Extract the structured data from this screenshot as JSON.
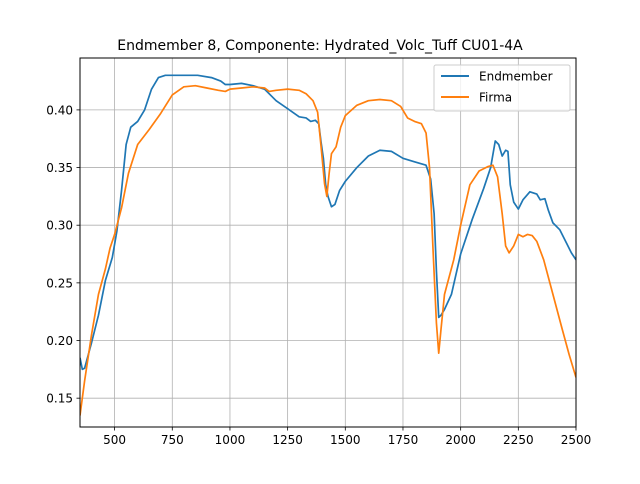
{
  "chart_data": {
    "type": "line",
    "title": "Endmember 8, Componente: Hydrated_Volc_Tuff CU01-4A",
    "xlabel": "",
    "ylabel": "",
    "xlim": [
      350,
      2500
    ],
    "ylim": [
      0.125,
      0.445
    ],
    "xticks": [
      500,
      750,
      1000,
      1250,
      1500,
      1750,
      2000,
      2250,
      2500
    ],
    "yticks": [
      0.15,
      0.2,
      0.25,
      0.3,
      0.35,
      0.4
    ],
    "ytick_labels": [
      "0.15",
      "0.20",
      "0.25",
      "0.30",
      "0.35",
      "0.40"
    ],
    "grid": true,
    "legend_position": "top-right",
    "series": [
      {
        "name": "Endmember",
        "color": "#1f77b4",
        "points": [
          [
            350,
            0.185
          ],
          [
            360,
            0.175
          ],
          [
            370,
            0.176
          ],
          [
            400,
            0.198
          ],
          [
            430,
            0.222
          ],
          [
            460,
            0.252
          ],
          [
            490,
            0.272
          ],
          [
            510,
            0.295
          ],
          [
            530,
            0.33
          ],
          [
            550,
            0.37
          ],
          [
            570,
            0.385
          ],
          [
            600,
            0.39
          ],
          [
            630,
            0.4
          ],
          [
            660,
            0.418
          ],
          [
            690,
            0.428
          ],
          [
            720,
            0.43
          ],
          [
            800,
            0.43
          ],
          [
            860,
            0.43
          ],
          [
            920,
            0.428
          ],
          [
            960,
            0.425
          ],
          [
            980,
            0.422
          ],
          [
            1000,
            0.422
          ],
          [
            1050,
            0.423
          ],
          [
            1100,
            0.421
          ],
          [
            1150,
            0.418
          ],
          [
            1180,
            0.412
          ],
          [
            1200,
            0.408
          ],
          [
            1250,
            0.401
          ],
          [
            1300,
            0.394
          ],
          [
            1330,
            0.393
          ],
          [
            1350,
            0.39
          ],
          [
            1370,
            0.391
          ],
          [
            1385,
            0.388
          ],
          [
            1395,
            0.372
          ],
          [
            1405,
            0.358
          ],
          [
            1415,
            0.335
          ],
          [
            1425,
            0.325
          ],
          [
            1440,
            0.316
          ],
          [
            1455,
            0.318
          ],
          [
            1475,
            0.33
          ],
          [
            1500,
            0.338
          ],
          [
            1550,
            0.35
          ],
          [
            1600,
            0.36
          ],
          [
            1650,
            0.365
          ],
          [
            1700,
            0.364
          ],
          [
            1750,
            0.358
          ],
          [
            1800,
            0.355
          ],
          [
            1850,
            0.352
          ],
          [
            1870,
            0.34
          ],
          [
            1885,
            0.31
          ],
          [
            1895,
            0.26
          ],
          [
            1905,
            0.22
          ],
          [
            1915,
            0.222
          ],
          [
            1930,
            0.227
          ],
          [
            1960,
            0.24
          ],
          [
            2000,
            0.275
          ],
          [
            2050,
            0.305
          ],
          [
            2100,
            0.332
          ],
          [
            2130,
            0.35
          ],
          [
            2150,
            0.373
          ],
          [
            2165,
            0.37
          ],
          [
            2180,
            0.36
          ],
          [
            2195,
            0.365
          ],
          [
            2205,
            0.364
          ],
          [
            2215,
            0.335
          ],
          [
            2230,
            0.32
          ],
          [
            2250,
            0.314
          ],
          [
            2270,
            0.322
          ],
          [
            2300,
            0.329
          ],
          [
            2330,
            0.327
          ],
          [
            2345,
            0.322
          ],
          [
            2365,
            0.323
          ],
          [
            2380,
            0.313
          ],
          [
            2400,
            0.302
          ],
          [
            2430,
            0.296
          ],
          [
            2460,
            0.284
          ],
          [
            2480,
            0.276
          ],
          [
            2500,
            0.27
          ]
        ]
      },
      {
        "name": "Firma",
        "color": "#ff7f0e",
        "points": [
          [
            350,
            0.135
          ],
          [
            370,
            0.165
          ],
          [
            400,
            0.205
          ],
          [
            430,
            0.24
          ],
          [
            460,
            0.262
          ],
          [
            480,
            0.28
          ],
          [
            500,
            0.292
          ],
          [
            530,
            0.315
          ],
          [
            560,
            0.345
          ],
          [
            600,
            0.37
          ],
          [
            650,
            0.383
          ],
          [
            700,
            0.397
          ],
          [
            750,
            0.413
          ],
          [
            800,
            0.42
          ],
          [
            850,
            0.421
          ],
          [
            900,
            0.419
          ],
          [
            950,
            0.417
          ],
          [
            980,
            0.416
          ],
          [
            1000,
            0.418
          ],
          [
            1050,
            0.419
          ],
          [
            1100,
            0.42
          ],
          [
            1150,
            0.419
          ],
          [
            1170,
            0.416
          ],
          [
            1200,
            0.417
          ],
          [
            1250,
            0.418
          ],
          [
            1300,
            0.417
          ],
          [
            1330,
            0.414
          ],
          [
            1360,
            0.408
          ],
          [
            1380,
            0.398
          ],
          [
            1395,
            0.368
          ],
          [
            1410,
            0.336
          ],
          [
            1420,
            0.325
          ],
          [
            1430,
            0.345
          ],
          [
            1440,
            0.362
          ],
          [
            1460,
            0.368
          ],
          [
            1480,
            0.385
          ],
          [
            1500,
            0.395
          ],
          [
            1550,
            0.404
          ],
          [
            1600,
            0.408
          ],
          [
            1650,
            0.409
          ],
          [
            1700,
            0.408
          ],
          [
            1740,
            0.403
          ],
          [
            1770,
            0.393
          ],
          [
            1800,
            0.39
          ],
          [
            1830,
            0.388
          ],
          [
            1850,
            0.38
          ],
          [
            1865,
            0.35
          ],
          [
            1880,
            0.28
          ],
          [
            1895,
            0.215
          ],
          [
            1905,
            0.189
          ],
          [
            1915,
            0.21
          ],
          [
            1930,
            0.24
          ],
          [
            1970,
            0.27
          ],
          [
            2000,
            0.3
          ],
          [
            2040,
            0.335
          ],
          [
            2080,
            0.347
          ],
          [
            2120,
            0.351
          ],
          [
            2140,
            0.352
          ],
          [
            2160,
            0.342
          ],
          [
            2180,
            0.31
          ],
          [
            2195,
            0.282
          ],
          [
            2210,
            0.276
          ],
          [
            2230,
            0.282
          ],
          [
            2250,
            0.292
          ],
          [
            2270,
            0.29
          ],
          [
            2290,
            0.292
          ],
          [
            2310,
            0.291
          ],
          [
            2330,
            0.286
          ],
          [
            2360,
            0.27
          ],
          [
            2400,
            0.24
          ],
          [
            2440,
            0.21
          ],
          [
            2470,
            0.188
          ],
          [
            2500,
            0.168
          ]
        ]
      }
    ]
  }
}
